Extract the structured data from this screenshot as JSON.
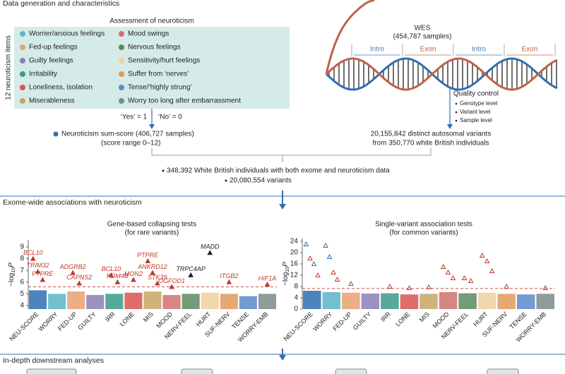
{
  "sections": {
    "s1": "Data generation and characteristics",
    "s2": "Exome-wide associations with neuroticism",
    "s3": "In-depth downstream analyses"
  },
  "assessment": {
    "title": "Assessment of neuroticism",
    "side_label": "12 neuroticism items",
    "items": [
      {
        "label": "Worrier/anxious feelings",
        "color": "#5ab4c8"
      },
      {
        "label": "Fed-up feelings",
        "color": "#e8a070"
      },
      {
        "label": "Guilty feelings",
        "color": "#8a7fb8"
      },
      {
        "label": "Irritability",
        "color": "#3a9a88"
      },
      {
        "label": "Loneliness, isolation",
        "color": "#d9534f"
      },
      {
        "label": "Miserableness",
        "color": "#c8a464"
      },
      {
        "label": "Mood swings",
        "color": "#d07070"
      },
      {
        "label": "Nervous feelings",
        "color": "#5a8a60"
      },
      {
        "label": "Sensitivity/hurt feelings",
        "color": "#efd0a0"
      },
      {
        "label": "Suffer from ‘nerves’",
        "color": "#e09a5a"
      },
      {
        "label": "Tense/‘highly strung’",
        "color": "#5a8ac8"
      },
      {
        "label": "Worry too long after embarrassment",
        "color": "#7a8a8a"
      }
    ],
    "yes": "‘Yes’ = 1",
    "no": "‘No’ = 0"
  },
  "sum_score": {
    "line1": "Neuroticism sum-score (406,727 samples)",
    "line2": "(score range 0–12)"
  },
  "wes": {
    "title": "WES",
    "samples": "(454,787 samples)",
    "regions": [
      "Intro",
      "Exon",
      "Intro",
      "Exon"
    ],
    "qc_title": "Quality control",
    "qc_items": [
      "Genotype level",
      "Variant level",
      "Sample level"
    ],
    "variants": "20,155,842 distinct autosomal variants",
    "individuals": "from 350,770 white British individuals"
  },
  "combined": [
    "348,392 White British individuals with both exome and neuroticism data",
    "20,080,554 variants"
  ],
  "plots": [
    {
      "title": "Gene-based collapsing tests",
      "subtitle": "(for rare variants)",
      "y_label": {
        "main": "−log",
        "sub": "10",
        "end": "P"
      },
      "categories": [
        "NEU-SCORE",
        "WORRY",
        "FED-UP",
        "GUILTY",
        "IRR",
        "LONE",
        "MIS",
        "MOOD",
        "NERV-FEEL",
        "HURT",
        "SUF-NERV",
        "TENSE",
        "WORRY-EMB"
      ],
      "colors": [
        "#2f6fb0",
        "#5ab4c8",
        "#e8a070",
        "#8a7fb8",
        "#3a9a88",
        "#d9534f",
        "#c8a464",
        "#d07070",
        "#5a8a60",
        "#efd0a0",
        "#e09a5a",
        "#5a8ac8",
        "#7a8a8a"
      ],
      "ylim": [
        3.7,
        9.6
      ],
      "yticks": [
        4,
        5,
        6,
        7,
        8,
        9
      ],
      "threshold": 5.6,
      "bulk_top": [
        5.3,
        5.0,
        5.2,
        4.9,
        5.0,
        5.1,
        5.2,
        4.9,
        5.0,
        5.1,
        5.0,
        4.8,
        5.0
      ],
      "hits": [
        {
          "label": "BCL10",
          "category": 0,
          "value": 8.0,
          "color": "#c0392b"
        },
        {
          "label": "TRIM32",
          "category": 0,
          "value": 6.9,
          "color": "#c0392b"
        },
        {
          "label": "PTPRE",
          "category": 0,
          "value": 6.2,
          "color": "#c0392b"
        },
        {
          "label": "ADGRB2",
          "category": 2,
          "value": 6.8,
          "color": "#c0392b"
        },
        {
          "label": "CAPNS2",
          "category": 2,
          "value": 5.9,
          "color": "#c0392b"
        },
        {
          "label": "BCL10",
          "category": 4,
          "value": 6.6,
          "color": "#c0392b"
        },
        {
          "label": "KDM4B",
          "category": 4,
          "value": 6.0,
          "color": "#c0392b"
        },
        {
          "label": "MON2",
          "category": 5,
          "value": 6.2,
          "color": "#c0392b"
        },
        {
          "label": "PTPRE",
          "category": 6,
          "value": 7.8,
          "color": "#c0392b"
        },
        {
          "label": "ANKRD12",
          "category": 6,
          "value": 6.8,
          "color": "#c0392b"
        },
        {
          "label": "STK39",
          "category": 6,
          "value": 5.9,
          "color": "#c0392b"
        },
        {
          "label": "OGFOD1",
          "category": 7,
          "value": 5.6,
          "color": "#c0392b"
        },
        {
          "label": "TRPC4AP",
          "category": 8,
          "value": 6.6,
          "color": "#222222"
        },
        {
          "label": "MADD",
          "category": 9,
          "value": 8.5,
          "color": "#222222"
        },
        {
          "label": "ITGB2",
          "category": 10,
          "value": 6.0,
          "color": "#c0392b"
        },
        {
          "label": "HIF1A",
          "category": 12,
          "value": 5.8,
          "color": "#c0392b"
        }
      ]
    },
    {
      "title": "Single-variant association tests",
      "subtitle": "(for common variants)",
      "y_label": {
        "main": "−log",
        "sub": "10",
        "end": "P"
      },
      "categories": [
        "NEU-SCORE",
        "WORRY",
        "FED-UP",
        "GUILTY",
        "IRR",
        "LONE",
        "MIS",
        "MOOD",
        "NERV-FEEL",
        "HURT",
        "SUF-NERV",
        "TENSE",
        "WORRY-EMB"
      ],
      "colors": [
        "#2f6fb0",
        "#5ab4c8",
        "#e8a070",
        "#8a7fb8",
        "#3a9a88",
        "#d9534f",
        "#c8a464",
        "#d07070",
        "#5a8a60",
        "#efd0a0",
        "#e09a5a",
        "#5a8ac8",
        "#7a8a8a"
      ],
      "ylim": [
        0,
        25
      ],
      "yticks": [
        0,
        4,
        8,
        12,
        16,
        20,
        24
      ],
      "threshold": 7.3,
      "bulk_top": [
        6.5,
        6.0,
        5.8,
        5.5,
        5.6,
        5.2,
        5.4,
        6.0,
        5.6,
        5.8,
        5.4,
        5.2,
        5.4
      ],
      "hits": [
        {
          "category": 0,
          "value": 23,
          "color": "#2f6fb0"
        },
        {
          "category": 0,
          "value": 18,
          "color": "#c0392b"
        },
        {
          "category": 0,
          "value": 16,
          "color": "#2f6fb0"
        },
        {
          "category": 0,
          "value": 12,
          "color": "#c0392b"
        },
        {
          "category": 1,
          "value": 22.5,
          "color": "#2f6fb0"
        },
        {
          "category": 1,
          "value": 18.5,
          "color": "#2f6fb0"
        },
        {
          "category": 1,
          "value": 13,
          "color": "#c0392b"
        },
        {
          "category": 1,
          "value": 10.5,
          "color": "#c0392b"
        },
        {
          "category": 2,
          "value": 9,
          "color": "#c0392b"
        },
        {
          "category": 4,
          "value": 8,
          "color": "#c0392b"
        },
        {
          "category": 5,
          "value": 7.5,
          "color": "#c0392b"
        },
        {
          "category": 6,
          "value": 7.8,
          "color": "#c0392b"
        },
        {
          "category": 7,
          "value": 15,
          "color": "#c0392b"
        },
        {
          "category": 7,
          "value": 13,
          "color": "#c0392b"
        },
        {
          "category": 7,
          "value": 11,
          "color": "#c0392b"
        },
        {
          "category": 8,
          "value": 11,
          "color": "#c0392b"
        },
        {
          "category": 8,
          "value": 10,
          "color": "#c0392b"
        },
        {
          "category": 9,
          "value": 19,
          "color": "#c0392b"
        },
        {
          "category": 9,
          "value": 17,
          "color": "#c0392b"
        },
        {
          "category": 9,
          "value": 13.5,
          "color": "#c0392b"
        },
        {
          "category": 10,
          "value": 8,
          "color": "#c0392b"
        },
        {
          "category": 12,
          "value": 7.5,
          "color": "#c0392b"
        }
      ]
    }
  ]
}
